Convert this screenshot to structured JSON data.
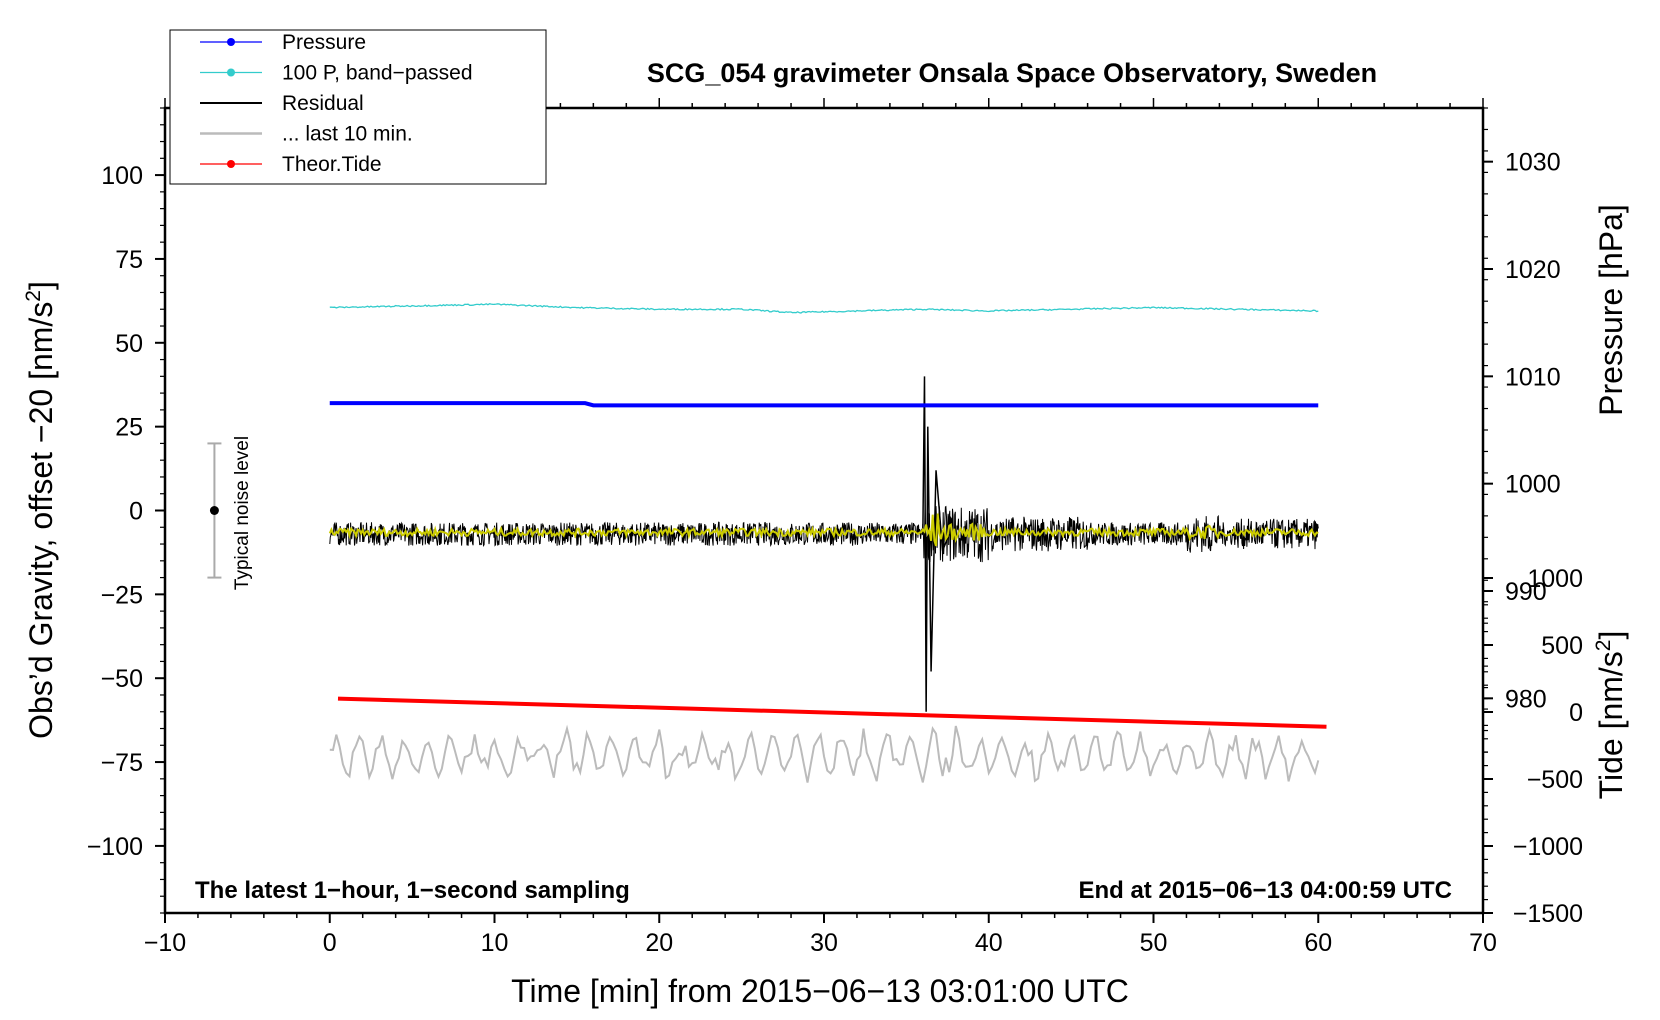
{
  "chart_data": {
    "type": "line",
    "title": "SCG_054 gravimeter Onsala Space Observatory, Sweden",
    "xlabel": "Time [min] from 2015−06−13 03:01:00 UTC",
    "ylabel_left": "Obs’d Gravity, offset −20 [nm/s²]",
    "ylabel_right_top": "Pressure [hPa]",
    "ylabel_right_bottom": "Tide [nm/s²]",
    "xlim": [
      -10,
      70
    ],
    "ylim": [
      -120,
      120
    ],
    "pressure_axis_range": [
      960,
      1035
    ],
    "tide_axis_range": [
      -1500,
      1000
    ],
    "x_ticks": [
      -10,
      0,
      10,
      20,
      30,
      40,
      50,
      60,
      70
    ],
    "x_tick_labels": [
      "−10",
      "0",
      "10",
      "20",
      "30",
      "40",
      "50",
      "60",
      "70"
    ],
    "y_ticks": [
      100,
      75,
      50,
      25,
      0,
      -25,
      -50,
      -75,
      -100
    ],
    "y_tick_labels": [
      "100",
      "75",
      "50",
      "25",
      "0",
      "−25",
      "−50",
      "−75",
      "−100"
    ],
    "pressure_ticks": [
      980,
      990,
      1000,
      1010,
      1020,
      1030
    ],
    "pressure_tick_labels": [
      "980",
      "990",
      "1000",
      "1010",
      "1020",
      "1030"
    ],
    "tide_ticks": [
      1000,
      500,
      0,
      -500,
      -1000,
      -1500
    ],
    "tide_tick_labels": [
      "1000",
      "500",
      "0",
      "−500",
      "−1000",
      "−1500"
    ],
    "legend": {
      "placement": "top-left",
      "entries": [
        {
          "label": "Pressure",
          "color": "#0000ff",
          "marker": true
        },
        {
          "label": "100 P, band−passed",
          "color": "#33cccc",
          "marker": true
        },
        {
          "label": "Residual",
          "color": "#000000",
          "marker": false
        },
        {
          "label": "... last 10 min.",
          "color": "#bbbbbb",
          "marker": false
        },
        {
          "label": "Theor.Tide",
          "color": "#ff0000",
          "marker": true
        }
      ]
    },
    "annotations": {
      "bottom_left": "The latest 1−hour, 1−second sampling",
      "bottom_right": "End at 2015−06−13 04:00:59 UTC",
      "noise_label": "Typical noise level"
    },
    "noise_bar": {
      "x": -7,
      "center": 0,
      "low": -20,
      "high": 20
    },
    "series": [
      {
        "name": "Pressure",
        "color": "#0000ff",
        "axis": "pressure",
        "x": [
          0,
          15.5,
          16,
          60
        ],
        "y": [
          1007.5,
          1007.5,
          1007.3,
          1007.3
        ]
      },
      {
        "name": "100 P, band−passed",
        "color": "#33cccc",
        "axis": "gravity",
        "x": [
          0,
          5,
          10,
          15,
          20,
          25,
          28,
          32,
          36,
          40,
          45,
          50,
          55,
          60
        ],
        "y": [
          60.5,
          61,
          61.5,
          60.5,
          60,
          60,
          59,
          59.5,
          60,
          59.5,
          60,
          60.5,
          60,
          59.5
        ]
      },
      {
        "name": "Residual",
        "color": "#000000",
        "axis": "gravity",
        "baseline": -7,
        "noise_amplitude": 3.5,
        "quake_x": [
          36.1,
          36.2,
          36.3,
          36.5,
          36.8,
          37.2
        ],
        "quake_y": [
          40,
          -60,
          25,
          -48,
          12,
          -12
        ]
      },
      {
        "name": "Residual (smoothed)",
        "color": "#cccc00",
        "axis": "gravity",
        "baseline": -6.5
      },
      {
        "name": "... last 10 min.",
        "color": "#bbbbbb",
        "axis": "gravity",
        "baseline": -73,
        "amplitude": 6
      },
      {
        "name": "Theor.Tide",
        "color": "#ff0000",
        "axis": "tide",
        "x": [
          0.5,
          60.5
        ],
        "y": [
          100,
          -110
        ]
      }
    ]
  }
}
